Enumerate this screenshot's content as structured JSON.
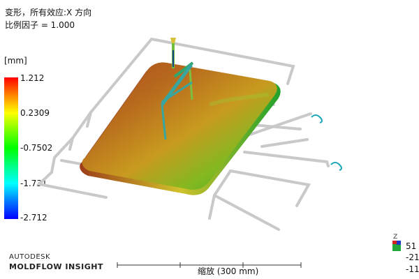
{
  "header": {
    "title_line1": "变形，所有效应:X 方向",
    "title_line2": "比例因子 = 1.000"
  },
  "legend": {
    "unit": "[mm]",
    "ticks": [
      "1.212",
      "0.2309",
      "-0.7502",
      "-1.731",
      "-2.712"
    ],
    "colors": {
      "max": "#ff0000",
      "mid": "#00ff00",
      "min": "#0000ff"
    }
  },
  "brand": {
    "line1": "AUTODESK",
    "line2": "MOLDFLOW INSIGHT"
  },
  "scale": {
    "label": "缩放 (300 mm)"
  },
  "axis_triad": {
    "axis_z_label": "Z",
    "numbers": [
      "51",
      "-21",
      "-11"
    ]
  },
  "model": {
    "part_colors": [
      "#b05a1a",
      "#c98a1a",
      "#7fbf1a",
      "#3bbf2b"
    ],
    "icon": "mesh-model-icon"
  }
}
